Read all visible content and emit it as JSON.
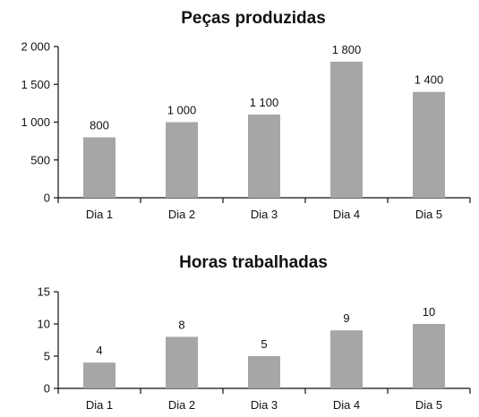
{
  "chart_data": [
    {
      "type": "bar",
      "title": "Peças produzidas",
      "categories": [
        "Dia 1",
        "Dia 2",
        "Dia 3",
        "Dia 4",
        "Dia 5"
      ],
      "values": [
        800,
        1000,
        1100,
        1800,
        1400
      ],
      "value_labels": [
        "800",
        "1 000",
        "1 100",
        "1 800",
        "1 400"
      ],
      "ylim": [
        0,
        2000
      ],
      "yticks": [
        0,
        500,
        1000,
        1500,
        2000
      ],
      "ytick_labels": [
        "0",
        "500",
        "1 000",
        "1 500",
        "2 000"
      ],
      "bar_color": "#a6a6a6",
      "grid": false,
      "legend": "none"
    },
    {
      "type": "bar",
      "title": "Horas trabalhadas",
      "categories": [
        "Dia 1",
        "Dia 2",
        "Dia 3",
        "Dia 4",
        "Dia 5"
      ],
      "values": [
        4,
        8,
        5,
        9,
        10
      ],
      "value_labels": [
        "4",
        "8",
        "5",
        "9",
        "10"
      ],
      "ylim": [
        0,
        15
      ],
      "yticks": [
        0,
        5,
        10,
        15
      ],
      "ytick_labels": [
        "0",
        "5",
        "10",
        "15"
      ],
      "bar_color": "#a6a6a6",
      "grid": false,
      "legend": "none"
    }
  ]
}
